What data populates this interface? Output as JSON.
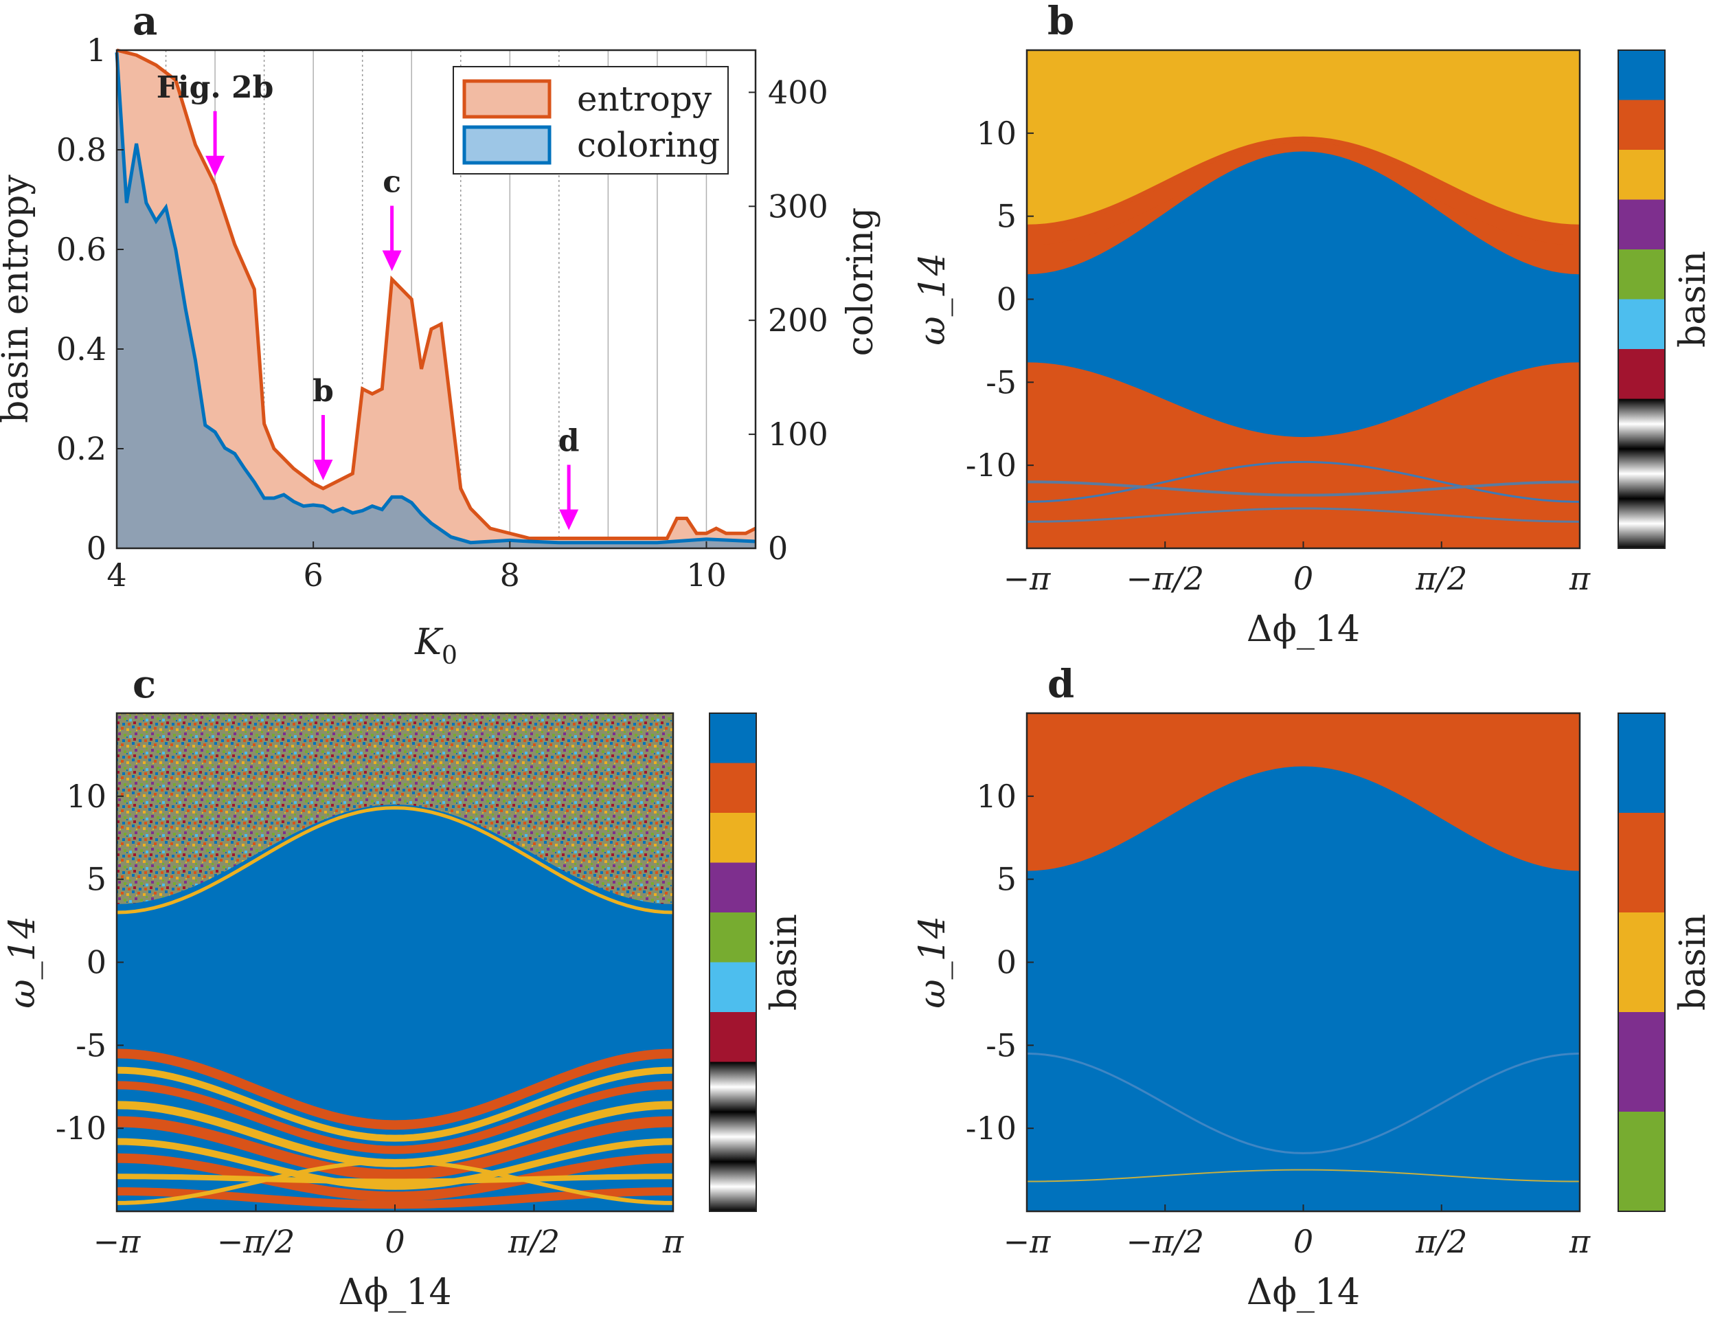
{
  "chart_data": [
    {
      "panel": "a",
      "type": "area",
      "xlabel": "K_0",
      "ylabel": "basin entropy",
      "ylabel_right": "coloring",
      "xlim": [
        4,
        10.5
      ],
      "ylim": [
        0,
        1
      ],
      "ylim_right": [
        0,
        437
      ],
      "xticks": [
        4,
        6,
        8,
        10
      ],
      "yticks": [
        0,
        0.2,
        0.4,
        0.6,
        0.8,
        1
      ],
      "yticks_right": [
        0,
        100,
        200,
        300,
        400
      ],
      "xtick_labels": [
        "4",
        "6",
        "8",
        "10"
      ],
      "ytick_labels": [
        "0",
        "0.2",
        "0.4",
        "0.6",
        "0.8",
        "1"
      ],
      "ytick_right_labels": [
        "0",
        "100",
        "200",
        "300",
        "400"
      ],
      "vlines_solid": [
        5,
        6,
        7,
        8,
        9,
        9.5,
        10
      ],
      "vlines_dotted": [
        4.5,
        5.5,
        6.5,
        7.5,
        8.5
      ],
      "legend": [
        {
          "name": "entropy",
          "edge": "#D95319",
          "fill": "#F2BBA3"
        },
        {
          "name": "coloring",
          "edge": "#0072BD",
          "fill": "#9DC6E6"
        }
      ],
      "series": [
        {
          "name": "entropy",
          "axis": "left",
          "x": [
            4,
            4.2,
            4.4,
            4.6,
            4.8,
            5.0,
            5.2,
            5.4,
            5.5,
            5.6,
            5.8,
            6.0,
            6.1,
            6.2,
            6.4,
            6.5,
            6.6,
            6.7,
            6.8,
            6.9,
            7.0,
            7.1,
            7.2,
            7.3,
            7.5,
            7.6,
            7.8,
            8.0,
            8.2,
            8.4,
            8.6,
            8.8,
            9.0,
            9.2,
            9.4,
            9.6,
            9.7,
            9.8,
            9.9,
            10.0,
            10.1,
            10.2,
            10.3,
            10.4,
            10.5
          ],
          "values": [
            1.0,
            0.99,
            0.97,
            0.94,
            0.81,
            0.73,
            0.61,
            0.52,
            0.25,
            0.2,
            0.16,
            0.13,
            0.12,
            0.13,
            0.15,
            0.32,
            0.31,
            0.32,
            0.54,
            0.52,
            0.5,
            0.36,
            0.44,
            0.45,
            0.12,
            0.08,
            0.04,
            0.03,
            0.02,
            0.02,
            0.02,
            0.02,
            0.02,
            0.02,
            0.02,
            0.02,
            0.06,
            0.06,
            0.03,
            0.03,
            0.04,
            0.03,
            0.03,
            0.03,
            0.04
          ]
        },
        {
          "name": "coloring",
          "axis": "right",
          "x": [
            4,
            4.1,
            4.2,
            4.3,
            4.4,
            4.5,
            4.6,
            4.7,
            4.8,
            4.9,
            5.0,
            5.1,
            5.2,
            5.3,
            5.4,
            5.5,
            5.6,
            5.7,
            5.8,
            5.9,
            6.0,
            6.1,
            6.2,
            6.3,
            6.4,
            6.5,
            6.6,
            6.7,
            6.8,
            6.9,
            7.0,
            7.1,
            7.2,
            7.4,
            7.6,
            7.8,
            8.0,
            8.2,
            8.5,
            9.0,
            9.5,
            10.0,
            10.5
          ],
          "values": [
            435,
            303,
            355,
            303,
            287,
            299,
            262,
            210,
            165,
            108,
            102,
            88,
            83,
            70,
            58,
            44,
            44,
            47,
            41,
            37,
            38,
            37,
            32,
            35,
            31,
            33,
            37,
            34,
            45,
            45,
            40,
            30,
            22,
            10,
            5,
            6,
            7,
            6,
            5,
            5,
            5,
            8,
            6
          ]
        }
      ],
      "annotations": [
        {
          "label": "Fig. 2b",
          "x": 5.0
        },
        {
          "label": "b",
          "x": 6.1
        },
        {
          "label": "c",
          "x": 6.8
        },
        {
          "label": "d",
          "x": 8.6
        }
      ]
    },
    {
      "panel": "b",
      "type": "heatmap",
      "xlabel": "Δϕ_14",
      "ylabel": "ω_14",
      "colorbar_label": "basin",
      "xlim": [
        -3.1416,
        3.1416
      ],
      "ylim": [
        -15,
        15
      ],
      "xtick_labels": [
        "−π",
        "−π/2",
        "0",
        "π/2",
        "π"
      ],
      "ytick_values": [
        10,
        5,
        0,
        -5,
        -10
      ],
      "ytick_labels": [
        "10",
        "5",
        "0",
        "-5",
        "-10"
      ],
      "basins": [
        {
          "basin": 1,
          "color": "#0072BD"
        },
        {
          "basin": 2,
          "color": "#D95319"
        },
        {
          "basin": 3,
          "color": "#EDB120"
        },
        {
          "basin": 4,
          "color": "#7E2F8E"
        },
        {
          "basin": 5,
          "color": "#77AC30"
        },
        {
          "basin": 6,
          "color": "#4DBEEE"
        },
        {
          "basin": 7,
          "color": "#A2142F"
        }
      ],
      "colorbar_extra_gray_bands": 3,
      "regions": {
        "upper_basin": 3,
        "central_basin": 1,
        "lower_basin": 2,
        "top_boundary_center": 9.8,
        "top_boundary_edge": 4.5,
        "bottom_boundary_center": -8.3,
        "bottom_boundary_edge": -3.8
      }
    },
    {
      "panel": "c",
      "type": "heatmap",
      "xlabel": "Δϕ_14",
      "ylabel": "ω_14",
      "colorbar_label": "basin",
      "xlim": [
        -3.1416,
        3.1416
      ],
      "ylim": [
        -15,
        15
      ],
      "xtick_labels": [
        "−π",
        "−π/2",
        "0",
        "π/2",
        "π"
      ],
      "ytick_values": [
        10,
        5,
        0,
        -5,
        -10
      ],
      "ytick_labels": [
        "10",
        "5",
        "0",
        "-5",
        "-10"
      ],
      "basins": [
        {
          "basin": 1,
          "color": "#0072BD"
        },
        {
          "basin": 2,
          "color": "#D95319"
        },
        {
          "basin": 3,
          "color": "#EDB120"
        },
        {
          "basin": 4,
          "color": "#7E2F8E"
        },
        {
          "basin": 5,
          "color": "#77AC30"
        },
        {
          "basin": 6,
          "color": "#4DBEEE"
        },
        {
          "basin": 7,
          "color": "#A2142F"
        }
      ],
      "colorbar_extra_gray_bands": 3,
      "regions": {
        "upper_basin": "mixed",
        "central_basin": 1,
        "lower_basin": "2/3 bands",
        "top_boundary_center": 9.5,
        "top_boundary_edge": 3.5,
        "bottom_boundary_center": -9.0,
        "bottom_boundary_edge": -4.5
      }
    },
    {
      "panel": "d",
      "type": "heatmap",
      "xlabel": "Δϕ_14",
      "ylabel": "ω_14",
      "colorbar_label": "basin",
      "xlim": [
        -3.1416,
        3.1416
      ],
      "ylim": [
        -15,
        15
      ],
      "xtick_labels": [
        "−π",
        "−π/2",
        "0",
        "π/2",
        "π"
      ],
      "ytick_values": [
        10,
        5,
        0,
        -5,
        -10
      ],
      "ytick_labels": [
        "10",
        "5",
        "0",
        "-5",
        "-10"
      ],
      "basins": [
        {
          "basin": 1,
          "color": "#0072BD"
        },
        {
          "basin": 2,
          "color": "#D95319"
        },
        {
          "basin": 3,
          "color": "#EDB120"
        },
        {
          "basin": 4,
          "color": "#7E2F8E"
        },
        {
          "basin": 5,
          "color": "#77AC30"
        }
      ],
      "colorbar_extra_gray_bands": 0,
      "regions": {
        "upper_basin": 2,
        "central_basin": 1,
        "top_boundary_center": 11.8,
        "top_boundary_edge": 5.5
      }
    }
  ]
}
